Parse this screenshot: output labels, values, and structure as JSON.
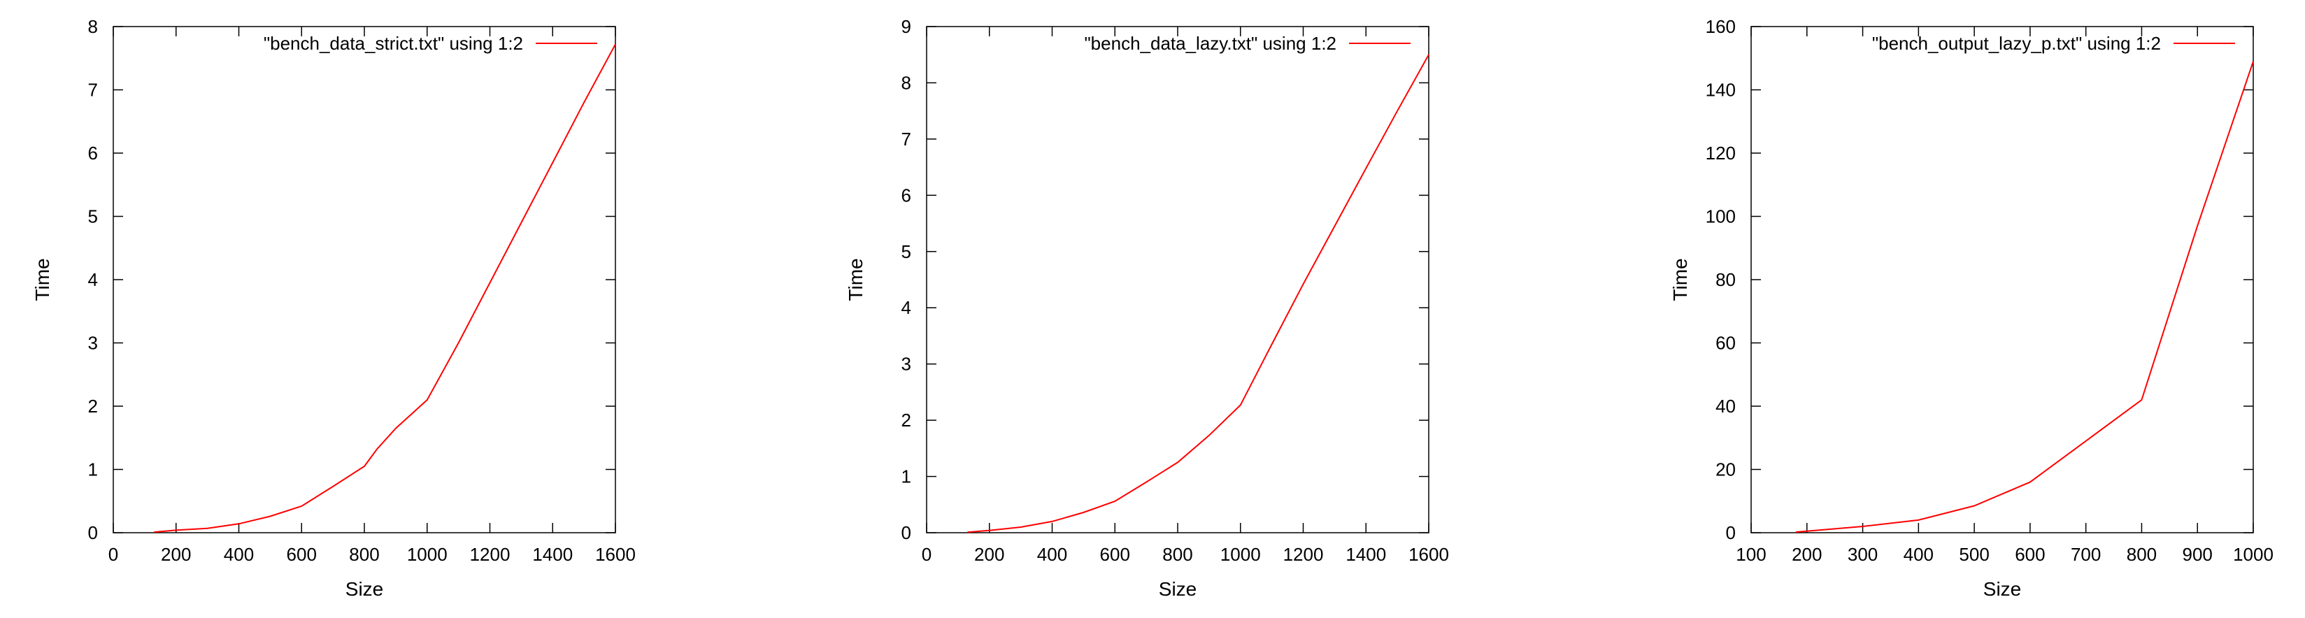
{
  "chart_data": [
    {
      "type": "line",
      "xlabel": "Size",
      "ylabel": "Time",
      "xlim": [
        0,
        1600
      ],
      "ylim": [
        0,
        8
      ],
      "xticks": [
        0,
        200,
        400,
        600,
        800,
        1000,
        1200,
        1400,
        1600
      ],
      "yticks": [
        0,
        1,
        2,
        3,
        4,
        5,
        6,
        7,
        8
      ],
      "legend_position": "top-right",
      "series": [
        {
          "name": "\"bench_data_strict.txt\" using 1:2",
          "color": "#ff0000",
          "x": [
            130,
            200,
            300,
            400,
            500,
            600,
            700,
            800,
            840,
            900,
            1000,
            1100,
            1200,
            1300,
            1400,
            1500,
            1600
          ],
          "y": [
            0.01,
            0.04,
            0.07,
            0.14,
            0.26,
            0.42,
            0.73,
            1.05,
            1.32,
            1.65,
            2.1,
            3.0,
            3.95,
            4.9,
            5.85,
            6.8,
            7.72
          ]
        }
      ]
    },
    {
      "type": "line",
      "xlabel": "Size",
      "ylabel": "Time",
      "xlim": [
        0,
        1600
      ],
      "ylim": [
        0,
        9
      ],
      "xticks": [
        0,
        200,
        400,
        600,
        800,
        1000,
        1200,
        1400,
        1600
      ],
      "yticks": [
        0,
        1,
        2,
        3,
        4,
        5,
        6,
        7,
        8,
        9
      ],
      "legend_position": "top-right",
      "series": [
        {
          "name": "\"bench_data_lazy.txt\" using 1:2",
          "color": "#ff0000",
          "x": [
            130,
            200,
            300,
            400,
            500,
            600,
            700,
            800,
            900,
            1000,
            1100,
            1200,
            1300,
            1400,
            1500,
            1600
          ],
          "y": [
            0.01,
            0.04,
            0.1,
            0.2,
            0.36,
            0.56,
            0.9,
            1.25,
            1.73,
            2.27,
            3.35,
            4.42,
            5.45,
            6.48,
            7.5,
            8.5
          ]
        }
      ]
    },
    {
      "type": "line",
      "xlabel": "Size",
      "ylabel": "Time",
      "xlim": [
        100,
        1000
      ],
      "ylim": [
        0,
        160
      ],
      "xticks": [
        100,
        200,
        300,
        400,
        500,
        600,
        700,
        800,
        900,
        1000
      ],
      "yticks": [
        0,
        20,
        40,
        60,
        80,
        100,
        120,
        140,
        160
      ],
      "legend_position": "top-right",
      "series": [
        {
          "name": "\"bench_output_lazy_p.txt\" using 1:2",
          "color": "#ff0000",
          "x": [
            180,
            200,
            300,
            400,
            500,
            600,
            700,
            800,
            900,
            1000
          ],
          "y": [
            0.2,
            0.5,
            2,
            4,
            8.5,
            16,
            29,
            42,
            97,
            149
          ]
        }
      ]
    }
  ]
}
